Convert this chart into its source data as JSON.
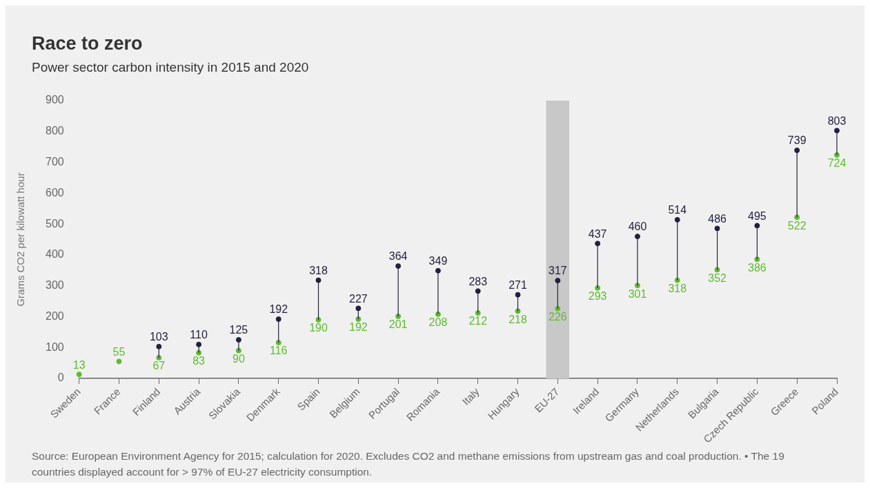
{
  "chart_data": {
    "type": "scatter",
    "title": "Race to zero",
    "subtitle": "Power sector carbon intensity in 2015 and 2020",
    "ylabel": "Grams CO2 per kilowatt hour",
    "categories": [
      "Sweden",
      "France",
      "Finland",
      "Austria",
      "Slovakia",
      "Denmark",
      "Spain",
      "Belgium",
      "Portugal",
      "Romania",
      "Italy",
      "Hungary",
      "EU-27",
      "Ireland",
      "Germany",
      "Netherlands",
      "Bulgaria",
      "Czech Republic",
      "Greece",
      "Poland"
    ],
    "series": [
      {
        "color": "#22223f",
        "values": [
          null,
          null,
          103,
          110,
          125,
          192,
          318,
          227,
          364,
          349,
          283,
          271,
          317,
          437,
          460,
          514,
          486,
          495,
          739,
          803
        ]
      },
      {
        "color": "#5dbb2e",
        "values": [
          13,
          55,
          67,
          83,
          90,
          116,
          190,
          192,
          201,
          208,
          212,
          218,
          226,
          293,
          301,
          318,
          352,
          386,
          522,
          724
        ]
      }
    ],
    "ylim": [
      0,
      900
    ],
    "yticks": [
      0,
      100,
      200,
      300,
      400,
      500,
      600,
      700,
      800,
      900
    ],
    "bands": [
      {
        "axis": "x",
        "from": "EU-27",
        "to": "EU-27",
        "color": "#c8c8c8"
      }
    ],
    "marker": "circle",
    "data_labels": true,
    "grid": false,
    "legend": false,
    "annotations": [
      "Source: European Environment Agency for 2015; calculation for 2020. Excludes CO2 and methane emissions from upstream gas and coal production. • The 19 countries displayed account for > 97% of EU-27 electricity consumption."
    ]
  }
}
